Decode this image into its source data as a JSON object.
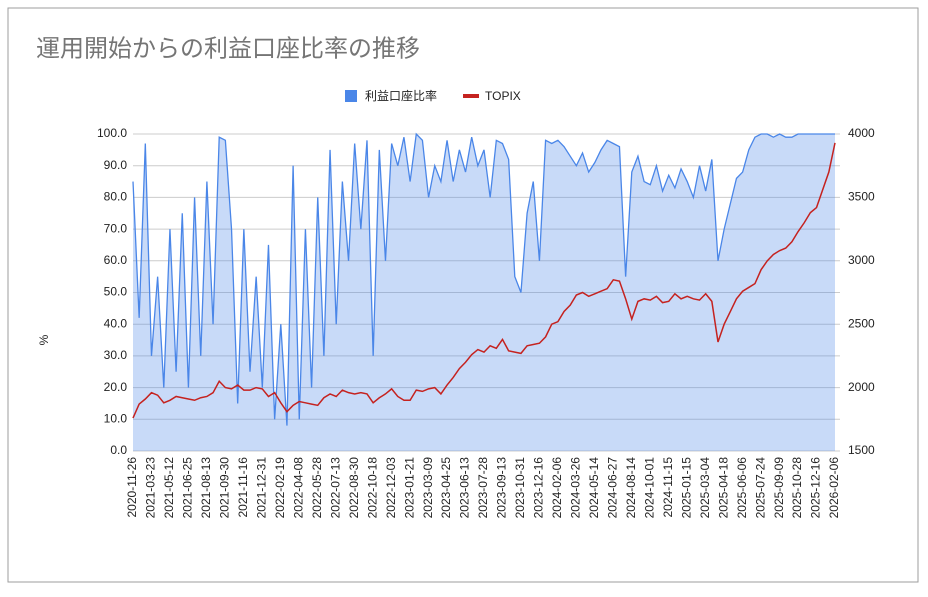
{
  "chart_data": {
    "type": "area-line",
    "title": "運用開始からの利益口座比率の推移",
    "ylabel": "%",
    "categories": [
      "2020-11-26",
      null,
      null,
      "2021-03-23",
      null,
      null,
      "2021-05-12",
      null,
      null,
      "2021-06-25",
      null,
      null,
      "2021-08-13",
      null,
      null,
      "2021-09-30",
      null,
      null,
      "2021-11-16",
      null,
      null,
      "2021-12-31",
      null,
      null,
      "2022-02-19",
      null,
      null,
      "2022-04-08",
      null,
      null,
      "2022-05-28",
      null,
      null,
      "2022-07-13",
      null,
      null,
      "2022-08-30",
      null,
      null,
      "2022-10-18",
      null,
      null,
      "2022-12-03",
      null,
      null,
      "2023-01-21",
      null,
      null,
      "2023-03-09",
      null,
      null,
      "2023-04-25",
      null,
      null,
      "2023-06-13",
      null,
      null,
      "2023-07-28",
      null,
      null,
      "2023-09-13",
      null,
      null,
      "2023-10-31",
      null,
      null,
      "2023-12-16",
      null,
      null,
      "2024-02-06",
      null,
      null,
      "2024-03-26",
      null,
      null,
      "2024-05-14",
      null,
      null,
      "2024-06-27",
      null,
      null,
      "2024-08-14",
      null,
      null,
      "2024-10-01",
      null,
      null,
      "2024-11-15",
      null,
      null,
      "2025-01-15",
      null,
      null,
      "2025-03-04",
      null,
      null,
      "2025-04-18",
      null,
      null,
      "2025-06-06",
      null,
      null,
      "2025-07-24",
      null,
      null,
      "2025-09-09",
      null,
      null,
      "2025-10-28",
      null,
      null,
      "2025-12-16",
      null,
      null,
      "2026-02-06"
    ],
    "series": [
      {
        "name": "利益口座比率",
        "color": "#4a86e8",
        "kind": "area",
        "axis": "y",
        "values": [
          85,
          42,
          97,
          30,
          55,
          20,
          70,
          25,
          75,
          20,
          80,
          30,
          85,
          40,
          99,
          98,
          70,
          15,
          70,
          25,
          55,
          20,
          65,
          10,
          40,
          8,
          90,
          10,
          70,
          20,
          80,
          30,
          95,
          40,
          85,
          60,
          97,
          70,
          98,
          30,
          95,
          60,
          97,
          90,
          99,
          85,
          100,
          98,
          80,
          90,
          85,
          98,
          85,
          95,
          88,
          99,
          90,
          95,
          80,
          98,
          97,
          92,
          55,
          50,
          75,
          85,
          60,
          98,
          97,
          98,
          96,
          93,
          90,
          94,
          88,
          91,
          95,
          98,
          97,
          96,
          55,
          88,
          93,
          85,
          84,
          90,
          82,
          87,
          83,
          89,
          85,
          80,
          90,
          82,
          92,
          60,
          70,
          78,
          86,
          88,
          95,
          99,
          100,
          100,
          99,
          100,
          99,
          99,
          100,
          100,
          100,
          100,
          100,
          100,
          100
        ]
      },
      {
        "name": "TOPIX",
        "color": "#c5221f",
        "kind": "line",
        "axis": "y2",
        "values": [
          1760,
          1870,
          1910,
          1960,
          1940,
          1880,
          1900,
          1930,
          1920,
          1910,
          1900,
          1920,
          1930,
          1960,
          2050,
          2000,
          1990,
          2020,
          1980,
          1980,
          2000,
          1990,
          1930,
          1960,
          1880,
          1810,
          1860,
          1890,
          1880,
          1870,
          1860,
          1920,
          1950,
          1930,
          1980,
          1960,
          1950,
          1960,
          1950,
          1880,
          1920,
          1950,
          1990,
          1930,
          1900,
          1900,
          1980,
          1970,
          1990,
          2000,
          1950,
          2020,
          2080,
          2150,
          2200,
          2260,
          2300,
          2280,
          2330,
          2310,
          2380,
          2290,
          2280,
          2270,
          2330,
          2340,
          2350,
          2400,
          2500,
          2520,
          2600,
          2650,
          2730,
          2750,
          2720,
          2740,
          2760,
          2780,
          2850,
          2840,
          2700,
          2540,
          2680,
          2700,
          2690,
          2720,
          2670,
          2680,
          2740,
          2700,
          2720,
          2700,
          2690,
          2740,
          2680,
          2360,
          2500,
          2600,
          2700,
          2760,
          2790,
          2820,
          2930,
          3000,
          3050,
          3080,
          3100,
          3150,
          3230,
          3300,
          3380,
          3420,
          3560,
          3700,
          3930
        ]
      }
    ],
    "ylim": [
      0,
      100
    ],
    "yticks": [
      {
        "value": 0,
        "label": "0.0"
      },
      {
        "value": 10,
        "label": "10.0"
      },
      {
        "value": 20,
        "label": "20.0"
      },
      {
        "value": 30,
        "label": "30.0"
      },
      {
        "value": 40,
        "label": "40.0"
      },
      {
        "value": 50,
        "label": "50.0"
      },
      {
        "value": 60,
        "label": "60.0"
      },
      {
        "value": 70,
        "label": "70.0"
      },
      {
        "value": 80,
        "label": "80.0"
      },
      {
        "value": 90,
        "label": "90.0"
      },
      {
        "value": 100,
        "label": "100.0"
      }
    ],
    "y2lim": [
      1500,
      4000
    ],
    "y2ticks": [
      1500,
      2000,
      2500,
      3000,
      3500,
      4000
    ],
    "grid": true,
    "legend": "top"
  }
}
